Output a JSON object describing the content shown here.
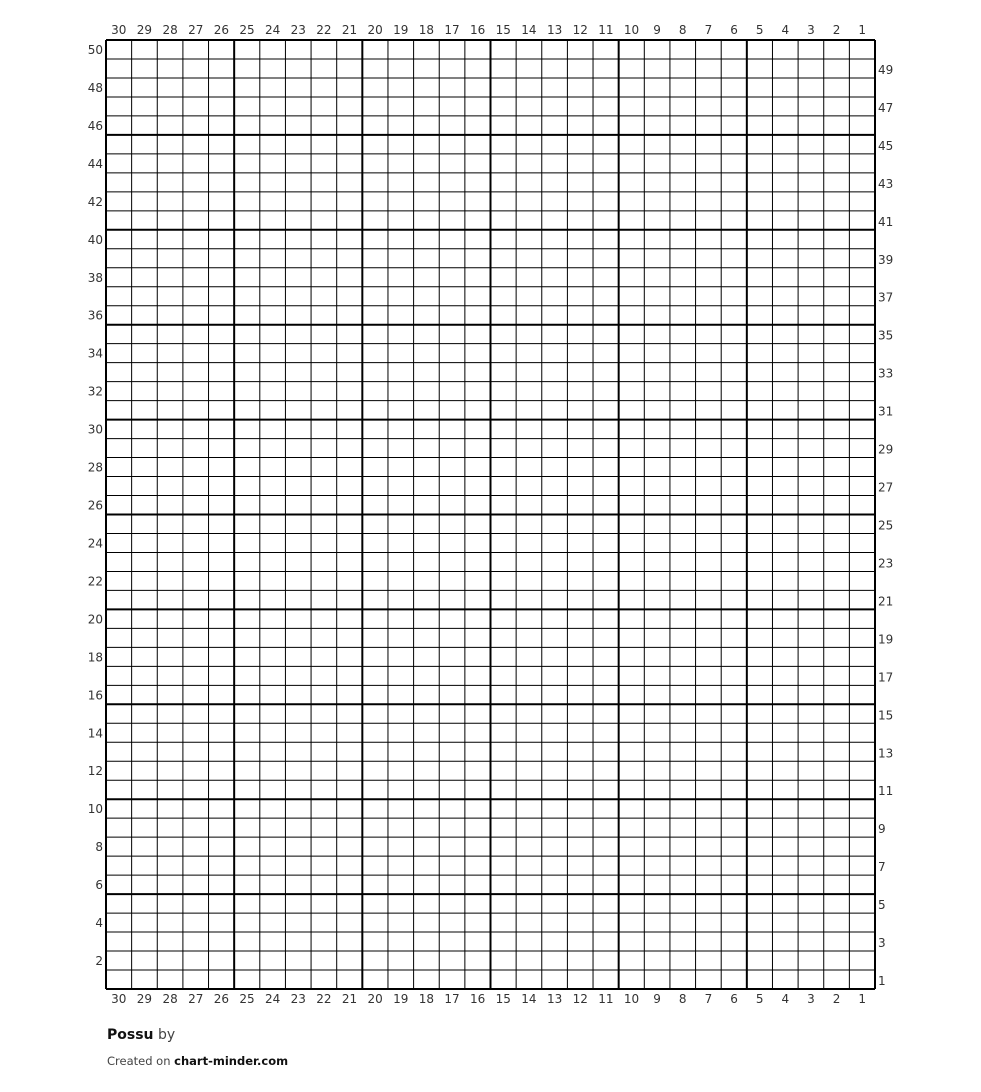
{
  "chart_data": {
    "type": "table",
    "title": "",
    "columns": 30,
    "rows": 50,
    "column_labels": "numbered 30 to 1, left to right, top and bottom",
    "row_labels_left": "even rows 50 to 2",
    "row_labels_right": "odd rows 49 to 1",
    "major_grid_every": 5,
    "cells_filled": [],
    "grid": true,
    "line_color": "#000000"
  },
  "footer": {
    "pattern_name": "Possu",
    "by": "by",
    "created_on": "Created on",
    "site": "chart-minder.com"
  }
}
